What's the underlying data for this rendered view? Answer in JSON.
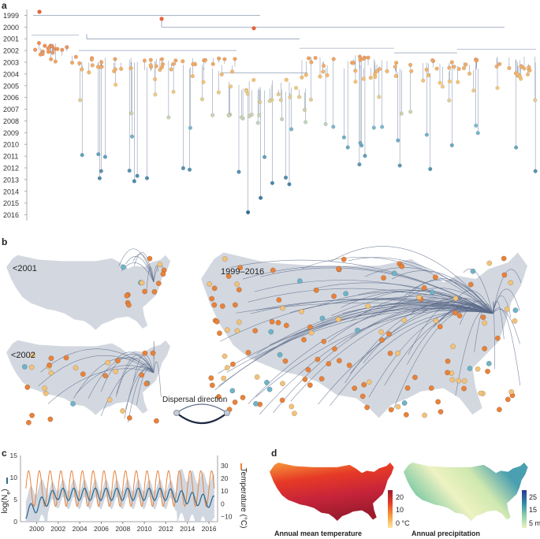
{
  "panels": {
    "a": {
      "label": "a",
      "chart_data": {
        "type": "scatter",
        "description_type": "phylogenetic-tree",
        "y_ticks": [
          "1999",
          "2000",
          "2001",
          "2002",
          "2003",
          "2004",
          "2005",
          "2006",
          "2007",
          "2008",
          "2009",
          "2010",
          "2011",
          "2012",
          "2013",
          "2014",
          "2015",
          "2016"
        ],
        "ylim": [
          1998.5,
          2016.5
        ],
        "colors": {
          "early": "#e8623a",
          "mid": "#f4c97c",
          "late": "#2f6e95",
          "branch": "#7a8aa6"
        }
      }
    },
    "b": {
      "label": "b",
      "maps": [
        {
          "label": "<2001"
        },
        {
          "label": "<2002"
        },
        {
          "label": "1999–2016"
        }
      ],
      "dispersal_label": "Dispersal direction",
      "colors": {
        "land": "#d3d8e0",
        "arc": "#5b6a88",
        "node": "#e8823a"
      }
    },
    "c": {
      "label": "c",
      "chart_data": {
        "type": "line",
        "x_ticks": [
          "2000",
          "2002",
          "2004",
          "2006",
          "2008",
          "2010",
          "2012",
          "2014",
          "2016"
        ],
        "xlim": [
          1998.5,
          2016.8
        ],
        "left_axis": {
          "label": "log(N",
          "label_sub": "e",
          "label_close": ")",
          "ticks": [
            "0",
            "5",
            "10",
            "15"
          ],
          "ylim": [
            0,
            15
          ]
        },
        "right_axis": {
          "label": "Temperature (°C)",
          "ticks": [
            "−10",
            "0",
            "10",
            "20",
            "30"
          ],
          "ylim": [
            -14,
            38
          ]
        },
        "series": [
          {
            "name": "log(Ne)",
            "color": "#2f6e95"
          },
          {
            "name": "Temperature",
            "color": "#e8823a"
          }
        ],
        "band_color": "#c8d0dc"
      }
    },
    "d": {
      "label": "d",
      "maps": [
        {
          "title": "Annual mean temperature",
          "scale_ticks": [
            "20",
            "10",
            "0 °C"
          ],
          "scale_colors": [
            "#9c1c2e",
            "#e63a26",
            "#f79a3a",
            "#fde6a0"
          ]
        },
        {
          "title": "Annual precipitation",
          "scale_ticks": [
            "25",
            "15",
            "5 m"
          ],
          "scale_colors": [
            "#2a3a8f",
            "#2e86a8",
            "#8ccfa8",
            "#eef2c2"
          ]
        }
      ]
    }
  }
}
